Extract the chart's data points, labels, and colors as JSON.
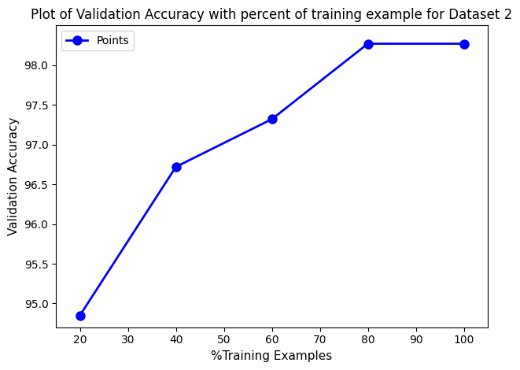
{
  "x": [
    20,
    40,
    60,
    80,
    100
  ],
  "y": [
    94.85,
    96.72,
    97.32,
    98.27,
    98.27
  ],
  "line_color": "#0000ff",
  "marker": "o",
  "marker_color": "#0000ff",
  "marker_size": 8,
  "line_width": 2,
  "legend_label": "Points",
  "title": "Plot of Validation Accuracy with percent of training example for Dataset 2",
  "xlabel": "%Training Examples",
  "ylabel": "Validation Accuracy",
  "title_fontsize": 12,
  "label_fontsize": 11,
  "xlim": [
    15,
    105
  ],
  "ylim": [
    94.7,
    98.5
  ],
  "xticks": [
    20,
    30,
    40,
    50,
    60,
    70,
    80,
    90,
    100
  ],
  "yticks": [
    95.0,
    95.5,
    96.0,
    96.5,
    97.0,
    97.5,
    98.0
  ],
  "background_color": "#ffffff"
}
